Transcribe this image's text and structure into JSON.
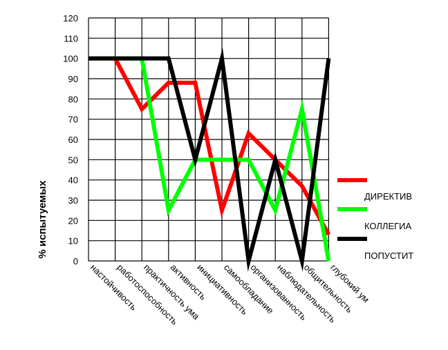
{
  "chart_data": {
    "type": "line",
    "title": "",
    "xlabel": "",
    "ylabel": "% испытуемых",
    "ylim": [
      0,
      120
    ],
    "yticks": [
      0,
      10,
      20,
      30,
      40,
      50,
      60,
      70,
      80,
      90,
      100,
      110,
      120
    ],
    "grid": true,
    "legend_position": "right",
    "categories": [
      "настойчивость",
      "работоспособность",
      "практичность ума",
      "активность",
      "инициативность",
      "самообладание",
      "организованность",
      "наблюдательность",
      "общительность",
      "глубокий ум"
    ],
    "series": [
      {
        "name": "ДИРЕКТИВ",
        "color": "#ff0000",
        "values": [
          100,
          100,
          75,
          88,
          88,
          25,
          63,
          50,
          37,
          13
        ]
      },
      {
        "name": "КОЛЛЕГИА",
        "color": "#00ff00",
        "values": [
          100,
          100,
          100,
          25,
          50,
          50,
          50,
          25,
          75,
          0
        ]
      },
      {
        "name": "ПОПУСТИТ",
        "color": "#000000",
        "values": [
          100,
          100,
          100,
          100,
          50,
          100,
          0,
          50,
          0,
          100
        ]
      }
    ]
  }
}
